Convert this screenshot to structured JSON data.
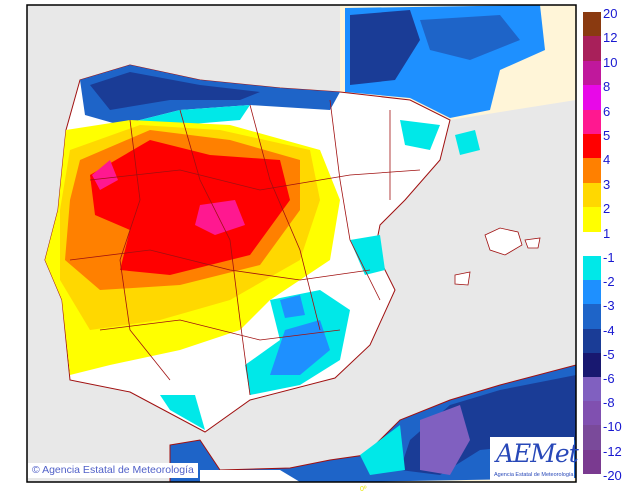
{
  "copyright": "© Agencia Estatal de Meteorología",
  "logo": {
    "brand": "AEMet",
    "subtitle": "Agencia Estatal de Meteorología"
  },
  "longitude_label": "0º",
  "legend": {
    "positive": [
      {
        "label": "20",
        "color": "#8a3a10"
      },
      {
        "label": "12",
        "color": "#a8205a"
      },
      {
        "label": "10",
        "color": "#c0189c"
      },
      {
        "label": "8",
        "color": "#e808e8"
      },
      {
        "label": "6",
        "color": "#ff1890"
      },
      {
        "label": "5",
        "color": "#ff0000"
      },
      {
        "label": "4",
        "color": "#ff8000"
      },
      {
        "label": "3",
        "color": "#ffd800"
      },
      {
        "label": "2",
        "color": "#ffff00"
      }
    ],
    "positive_bottom": "1",
    "negative": [
      {
        "label": "-1",
        "color": "#00e8e8"
      },
      {
        "label": "-2",
        "color": "#1e90ff"
      },
      {
        "label": "-3",
        "color": "#1e64c8"
      },
      {
        "label": "-4",
        "color": "#1a3c96"
      },
      {
        "label": "-5",
        "color": "#181870"
      },
      {
        "label": "-6",
        "color": "#8060c0"
      },
      {
        "label": "-8",
        "color": "#8050b0"
      },
      {
        "label": "-10",
        "color": "#7a4a9a"
      },
      {
        "label": "-12",
        "color": "#7a3a90"
      }
    ],
    "negative_bottom": "-20"
  }
}
